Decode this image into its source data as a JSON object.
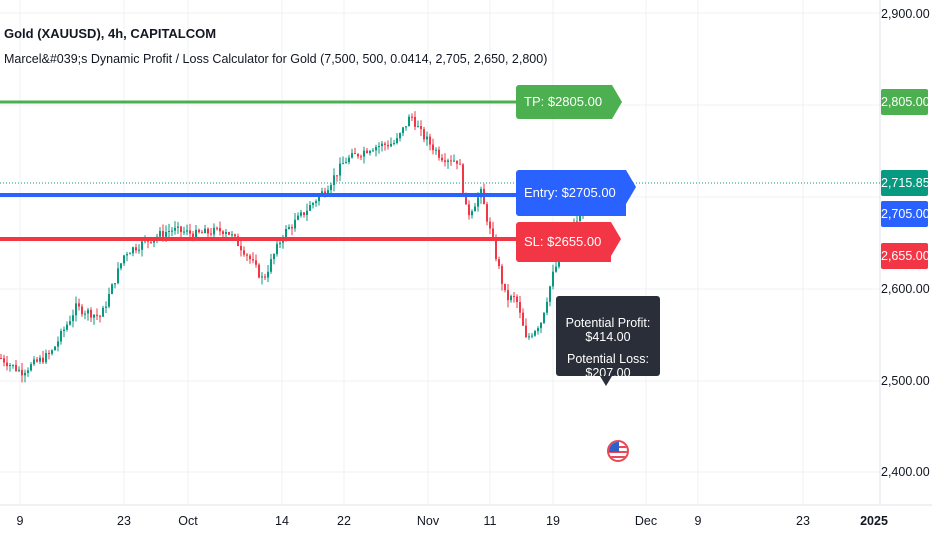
{
  "header": {
    "symbol": "Gold (XAUUSD), 4h, CAPITALCOM",
    "indicator": "Marcel&#039;s Dynamic Profit / Loss Calculator for Gold (7,500, 500, 0.0414, 2,705, 2,650, 2,800)"
  },
  "price_axis": {
    "ticks": [
      "2,900.00",
      "2,600.00",
      "2,500.00",
      "2,400.00"
    ],
    "badges": {
      "tp": "2,805.00",
      "last": "2,715.85",
      "entry": "2,705.00",
      "sl": "2,655.00"
    }
  },
  "time_axis": {
    "labels": [
      "9",
      "23",
      "Oct",
      "14",
      "22",
      "Nov",
      "11",
      "19",
      "Dec",
      "9",
      "23",
      "2025"
    ]
  },
  "levels": {
    "tp_label": "TP: $2805.00",
    "entry_label": "Entry: $2705.00",
    "sl_label": "SL: $2655.00"
  },
  "tooltip": {
    "profit": "Potential Profit: $414.00",
    "loss": "Potential Loss: $207.00"
  },
  "colors": {
    "tp": "#4caf50",
    "entry": "#2962ff",
    "sl": "#f23645",
    "last_price": "#089981",
    "up_candle": "#089981",
    "down_candle": "#f23645"
  }
}
